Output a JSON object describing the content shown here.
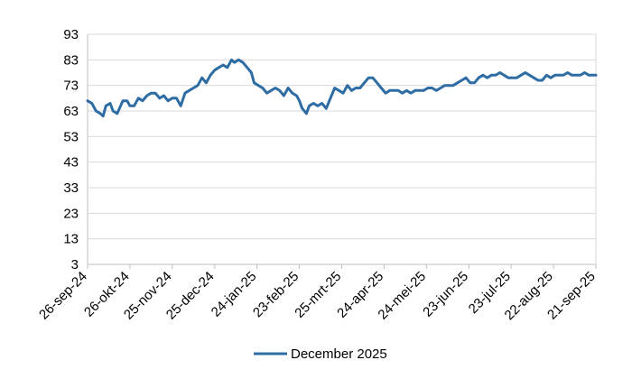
{
  "chart_data": {
    "type": "line",
    "title": "",
    "xlabel": "",
    "ylabel": "",
    "ylim": [
      3,
      93
    ],
    "yticks": [
      3,
      13,
      23,
      33,
      43,
      53,
      63,
      73,
      83,
      93
    ],
    "grid": "horizontal",
    "legend_position": "bottom",
    "xtick_labels": [
      "26-sep-24",
      "26-okt-24",
      "25-nov-24",
      "25-dec-24",
      "24-jan-25",
      "23-feb-25",
      "25-mrt-25",
      "24-apr-25",
      "24-mei-25",
      "23-jun-25",
      "23-jul-25",
      "22-aug-25",
      "21-sep-25"
    ],
    "x_range_days": [
      0,
      360
    ],
    "series": [
      {
        "name": "December 2025",
        "color": "#2e6ca4",
        "values": [
          [
            0,
            67
          ],
          [
            3,
            66
          ],
          [
            6,
            63
          ],
          [
            9,
            62
          ],
          [
            11,
            61
          ],
          [
            13,
            65
          ],
          [
            16,
            66
          ],
          [
            18,
            63
          ],
          [
            21,
            62
          ],
          [
            25,
            67
          ],
          [
            28,
            67
          ],
          [
            30,
            65
          ],
          [
            33,
            65
          ],
          [
            36,
            68
          ],
          [
            39,
            67
          ],
          [
            42,
            69
          ],
          [
            45,
            70
          ],
          [
            48,
            70
          ],
          [
            51,
            68
          ],
          [
            54,
            69
          ],
          [
            57,
            67
          ],
          [
            60,
            68
          ],
          [
            63,
            68
          ],
          [
            66,
            65
          ],
          [
            69,
            70
          ],
          [
            72,
            71
          ],
          [
            75,
            72
          ],
          [
            78,
            73
          ],
          [
            81,
            76
          ],
          [
            84,
            74
          ],
          [
            87,
            77
          ],
          [
            90,
            79
          ],
          [
            93,
            80
          ],
          [
            96,
            81
          ],
          [
            99,
            80
          ],
          [
            102,
            83
          ],
          [
            104,
            82
          ],
          [
            107,
            83
          ],
          [
            110,
            82
          ],
          [
            113,
            80
          ],
          [
            116,
            78
          ],
          [
            118,
            74
          ],
          [
            121,
            73
          ],
          [
            124,
            72
          ],
          [
            127,
            70
          ],
          [
            130,
            71
          ],
          [
            133,
            72
          ],
          [
            136,
            71
          ],
          [
            139,
            69
          ],
          [
            142,
            72
          ],
          [
            145,
            70
          ],
          [
            148,
            69
          ],
          [
            150,
            67
          ],
          [
            152,
            64
          ],
          [
            155,
            62
          ],
          [
            157,
            65
          ],
          [
            160,
            66
          ],
          [
            163,
            65
          ],
          [
            166,
            66
          ],
          [
            169,
            64
          ],
          [
            172,
            68
          ],
          [
            175,
            72
          ],
          [
            178,
            71
          ],
          [
            181,
            70
          ],
          [
            184,
            73
          ],
          [
            187,
            71
          ],
          [
            190,
            72
          ],
          [
            193,
            72
          ],
          [
            196,
            74
          ],
          [
            199,
            76
          ],
          [
            202,
            76
          ],
          [
            205,
            74
          ],
          [
            208,
            72
          ],
          [
            211,
            70
          ],
          [
            214,
            71
          ],
          [
            217,
            71
          ],
          [
            220,
            71
          ],
          [
            223,
            70
          ],
          [
            226,
            71
          ],
          [
            229,
            70
          ],
          [
            232,
            71
          ],
          [
            235,
            71
          ],
          [
            238,
            71
          ],
          [
            241,
            72
          ],
          [
            244,
            72
          ],
          [
            247,
            71
          ],
          [
            250,
            72
          ],
          [
            253,
            73
          ],
          [
            256,
            73
          ],
          [
            259,
            73
          ],
          [
            262,
            74
          ],
          [
            265,
            75
          ],
          [
            268,
            76
          ],
          [
            271,
            74
          ],
          [
            274,
            74
          ],
          [
            277,
            76
          ],
          [
            280,
            77
          ],
          [
            283,
            76
          ],
          [
            286,
            77
          ],
          [
            289,
            77
          ],
          [
            292,
            78
          ],
          [
            295,
            77
          ],
          [
            298,
            76
          ],
          [
            301,
            76
          ],
          [
            304,
            76
          ],
          [
            307,
            77
          ],
          [
            310,
            78
          ],
          [
            313,
            77
          ],
          [
            316,
            76
          ],
          [
            319,
            75
          ],
          [
            322,
            75
          ],
          [
            325,
            77
          ],
          [
            328,
            76
          ],
          [
            331,
            77
          ],
          [
            334,
            77
          ],
          [
            337,
            77
          ],
          [
            340,
            78
          ],
          [
            343,
            77
          ],
          [
            346,
            77
          ],
          [
            349,
            77
          ],
          [
            352,
            78
          ],
          [
            355,
            77
          ],
          [
            358,
            77
          ],
          [
            360,
            77
          ]
        ]
      }
    ]
  }
}
